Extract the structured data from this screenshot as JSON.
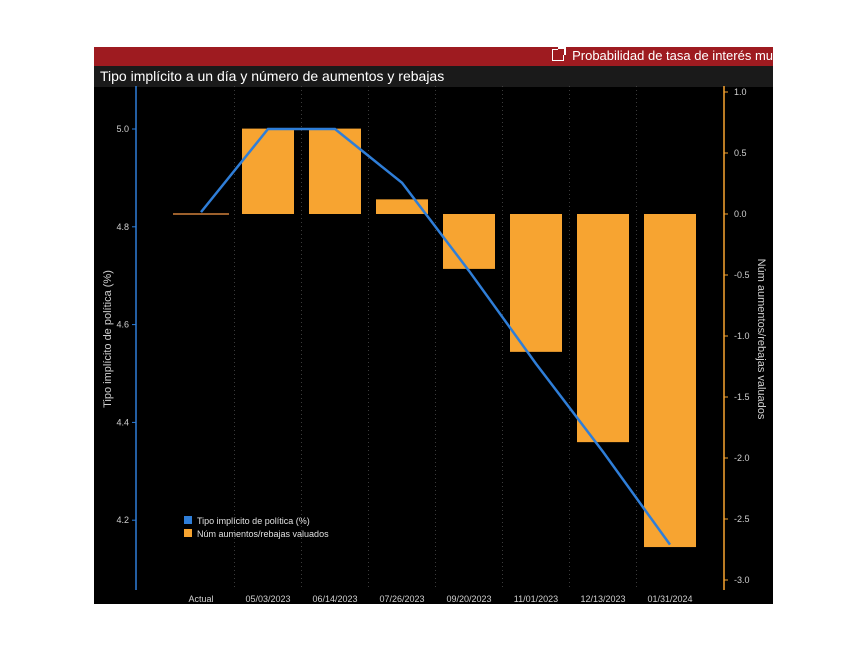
{
  "header": {
    "link_label": "Probabilidad de tasa de interés mu",
    "link_icon": "external-link-icon"
  },
  "colors": {
    "bar": "#f7a431",
    "line": "#2f7ed8",
    "header_bg": "#9e1b20",
    "axis_left": "#2f7ed8",
    "axis_right": "#f7a431"
  },
  "chart_data": {
    "type": "bar",
    "title": "Tipo implícito a un día y número de aumentos y rebajas",
    "categories": [
      "Actual",
      "05/03/2023",
      "06/14/2023",
      "07/26/2023",
      "09/20/2023",
      "11/01/2023",
      "12/13/2023",
      "01/31/2024"
    ],
    "series": [
      {
        "name": "Tipo implícito de política (%)",
        "type": "line",
        "axis": "left",
        "values": [
          4.83,
          5.0,
          5.0,
          4.89,
          4.71,
          4.52,
          4.34,
          4.15
        ]
      },
      {
        "name": "Núm aumentos/rebajas valuados",
        "type": "bar",
        "axis": "right",
        "values": [
          0.0,
          0.7,
          0.7,
          0.12,
          -0.45,
          -1.13,
          -1.87,
          -2.73
        ]
      }
    ],
    "ylabel_left": "Tipo implícito de política (%)",
    "ylabel_right": "Núm aumentos/rebajas valuados",
    "yticks_left": [
      "4.2",
      "4.4",
      "4.6",
      "4.8",
      "5.0"
    ],
    "yticks_right": [
      "1.0",
      "0.5",
      "0.0",
      "-0.5",
      "-1.0",
      "-1.5",
      "-2.0",
      "-2.5",
      "-3.0"
    ],
    "legend_position": "bottom-left"
  }
}
